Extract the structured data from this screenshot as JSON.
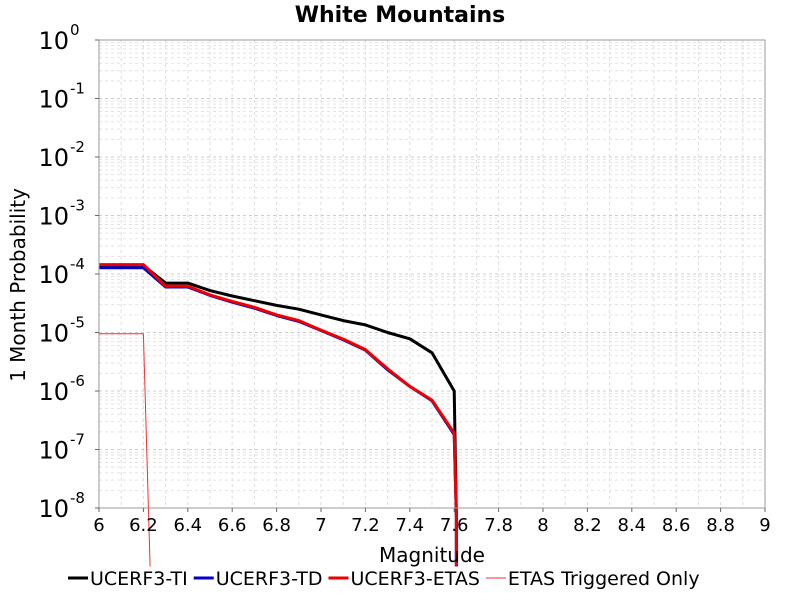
{
  "chart_data": {
    "type": "line",
    "title": "White Mountains",
    "xlabel": "Magnitude",
    "ylabel": "1 Month Probability",
    "xlim": [
      6,
      9
    ],
    "ylim": [
      1e-08,
      1
    ],
    "yscale": "log",
    "grid": true,
    "legend_position": "bottom",
    "x_ticks": [
      "6",
      "6.2",
      "6.4",
      "6.6",
      "6.8",
      "7",
      "7.2",
      "7.4",
      "7.6",
      "7.8",
      "8",
      "8.2",
      "8.4",
      "8.6",
      "8.8",
      "9"
    ],
    "y_ticks": [
      {
        "base": "10",
        "exp": "0"
      },
      {
        "base": "10",
        "exp": "-1"
      },
      {
        "base": "10",
        "exp": "-2"
      },
      {
        "base": "10",
        "exp": "-3"
      },
      {
        "base": "10",
        "exp": "-4"
      },
      {
        "base": "10",
        "exp": "-5"
      },
      {
        "base": "10",
        "exp": "-6"
      },
      {
        "base": "10",
        "exp": "-7"
      },
      {
        "base": "10",
        "exp": "-8"
      }
    ],
    "series": [
      {
        "name": "UCERF3-TI",
        "color": "#000000",
        "width": 3,
        "points": [
          [
            6.0,
            0.00014
          ],
          [
            6.1,
            0.00014
          ],
          [
            6.2,
            0.00014
          ],
          [
            6.3,
            7e-05
          ],
          [
            6.4,
            7e-05
          ],
          [
            6.5,
            5.2e-05
          ],
          [
            6.6,
            4.2e-05
          ],
          [
            6.7,
            3.5e-05
          ],
          [
            6.8,
            2.9e-05
          ],
          [
            6.9,
            2.5e-05
          ],
          [
            7.0,
            2e-05
          ],
          [
            7.1,
            1.6e-05
          ],
          [
            7.2,
            1.35e-05
          ],
          [
            7.3,
            1e-05
          ],
          [
            7.4,
            7.8e-06
          ],
          [
            7.5,
            4.5e-06
          ],
          [
            7.6,
            1e-06
          ],
          [
            7.61,
            7e-09
          ],
          [
            7.61,
            1e-09
          ]
        ]
      },
      {
        "name": "UCERF3-TD",
        "color": "#0000cc",
        "width": 3,
        "points": [
          [
            6.0,
            0.000128
          ],
          [
            6.1,
            0.000128
          ],
          [
            6.2,
            0.000128
          ],
          [
            6.3,
            6e-05
          ],
          [
            6.4,
            6e-05
          ],
          [
            6.5,
            4.3e-05
          ],
          [
            6.6,
            3.3e-05
          ],
          [
            6.7,
            2.6e-05
          ],
          [
            6.8,
            1.95e-05
          ],
          [
            6.9,
            1.55e-05
          ],
          [
            7.0,
            1.08e-05
          ],
          [
            7.1,
            7.5e-06
          ],
          [
            7.2,
            5e-06
          ],
          [
            7.3,
            2.3e-06
          ],
          [
            7.4,
            1.2e-06
          ],
          [
            7.5,
            6.8e-07
          ],
          [
            7.6,
            1.8e-07
          ],
          [
            7.61,
            7e-09
          ],
          [
            7.61,
            1e-09
          ]
        ]
      },
      {
        "name": "UCERF3-ETAS",
        "color": "#ee0000",
        "width": 3,
        "points": [
          [
            6.0,
            0.000145
          ],
          [
            6.1,
            0.000145
          ],
          [
            6.2,
            0.000145
          ],
          [
            6.3,
            6.2e-05
          ],
          [
            6.4,
            6.2e-05
          ],
          [
            6.5,
            4.4e-05
          ],
          [
            6.6,
            3.4e-05
          ],
          [
            6.7,
            2.7e-05
          ],
          [
            6.8,
            2e-05
          ],
          [
            6.9,
            1.6e-05
          ],
          [
            7.0,
            1.1e-05
          ],
          [
            7.1,
            7.7e-06
          ],
          [
            7.2,
            5.1e-06
          ],
          [
            7.3,
            2.4e-06
          ],
          [
            7.4,
            1.2e-06
          ],
          [
            7.5,
            7e-07
          ],
          [
            7.6,
            1.9e-07
          ],
          [
            7.61,
            7e-09
          ],
          [
            7.61,
            1e-09
          ]
        ]
      },
      {
        "name": "ETAS Triggered Only",
        "color": "#ee3333",
        "width": 1,
        "points": [
          [
            6.0,
            9.5e-06
          ],
          [
            6.2,
            9.5e-06
          ],
          [
            6.23,
            1e-09
          ]
        ]
      }
    ]
  }
}
